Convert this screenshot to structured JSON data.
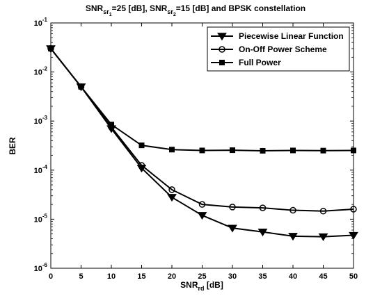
{
  "chart_data": {
    "type": "line",
    "title": {
      "p1": "SNR",
      "p1_sub": "sr",
      "p1_subsub": "1",
      "p2": "=25 [dB], SNR",
      "p2_sub": "sr",
      "p2_subsub": "2",
      "p3": "=15 [dB] and BPSK constellation"
    },
    "xlabel": {
      "main": "SNR",
      "sub": "rd",
      "rest": " [dB]"
    },
    "ylabel": "BER",
    "xlim": [
      0,
      50
    ],
    "ylim": [
      1e-06,
      0.1
    ],
    "yscale": "log",
    "x_ticks": [
      0,
      5,
      10,
      15,
      20,
      25,
      30,
      35,
      40,
      45,
      50
    ],
    "y_ticks": [
      {
        "base": "10",
        "exp": "-6",
        "value": 1e-06
      },
      {
        "base": "10",
        "exp": "-5",
        "value": 1e-05
      },
      {
        "base": "10",
        "exp": "-4",
        "value": 0.0001
      },
      {
        "base": "10",
        "exp": "-3",
        "value": 0.001
      },
      {
        "base": "10",
        "exp": "-2",
        "value": 0.01
      },
      {
        "base": "10",
        "exp": "-1",
        "value": 0.1
      }
    ],
    "grid": false,
    "legend_position": "top-right",
    "x": [
      0,
      5,
      10,
      15,
      20,
      25,
      30,
      35,
      40,
      45,
      50
    ],
    "series": [
      {
        "name": "Piecewise Linear Function",
        "marker": "triangle-down",
        "values": [
          0.03,
          0.005,
          0.0007,
          0.00011,
          2.8e-05,
          1.2e-05,
          6.6e-06,
          5.5e-06,
          4.5e-06,
          4.4e-06,
          4.7e-06
        ]
      },
      {
        "name": "On-Off Power Scheme",
        "marker": "circle",
        "values": [
          0.03,
          0.005,
          0.00075,
          0.000125,
          4e-05,
          2e-05,
          1.77e-05,
          1.7e-05,
          1.52e-05,
          1.46e-05,
          1.6e-05
        ]
      },
      {
        "name": "Full Power",
        "marker": "square",
        "values": [
          0.03,
          0.005,
          0.00085,
          0.00032,
          0.000262,
          0.000252,
          0.000255,
          0.000248,
          0.000252,
          0.00025,
          0.000252
        ]
      }
    ]
  }
}
